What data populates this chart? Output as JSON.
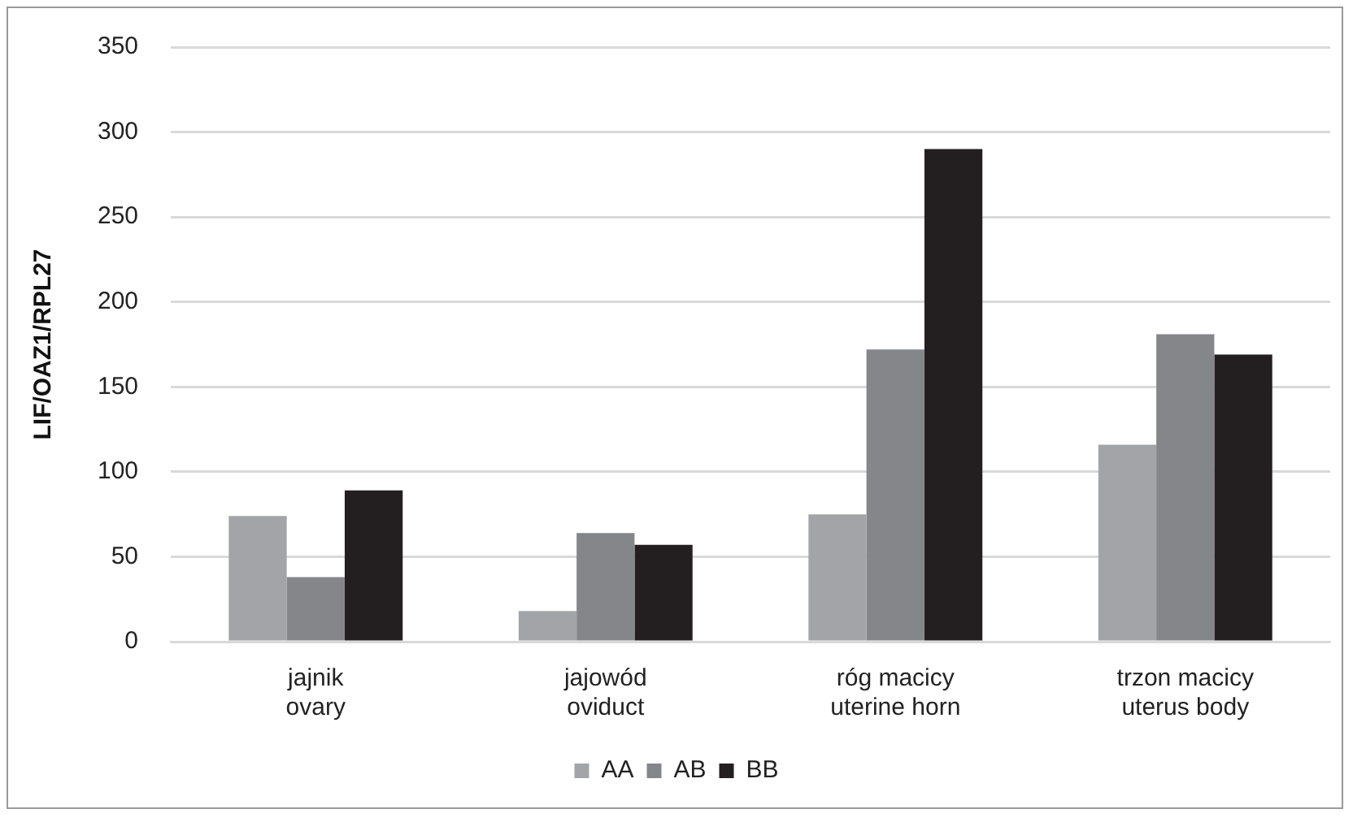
{
  "chart_data": {
    "type": "bar",
    "ylabel": "LIF/OAZ1/RPL27",
    "categories": [
      "jajnik\novary",
      "jajowód\noviduct",
      "róg macicy\nuterine horn",
      "trzon macicy\nuterus body"
    ],
    "series": [
      {
        "name": "AA",
        "color": "#a3a4a8",
        "values": [
          74,
          18,
          75,
          116
        ]
      },
      {
        "name": "AB",
        "color": "#85868a",
        "values": [
          38,
          64,
          172,
          181
        ]
      },
      {
        "name": "BB",
        "color": "#231f20",
        "values": [
          89,
          57,
          290,
          169
        ]
      }
    ],
    "ylim": [
      0,
      350
    ],
    "yticks": [
      0,
      50,
      100,
      150,
      200,
      250,
      300,
      350
    ],
    "grid": "y",
    "legend": "bottom"
  }
}
